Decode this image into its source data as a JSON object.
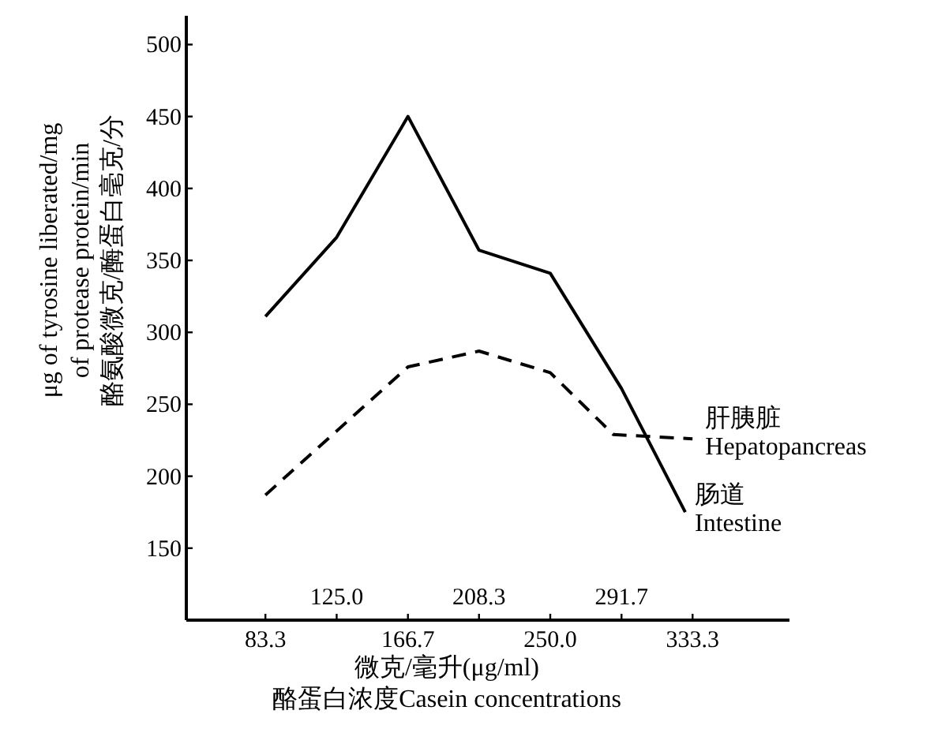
{
  "chart_data": {
    "type": "line",
    "xlabel": "微克/毫升(μg/ml)\n酪蛋白浓度Casein concentrations",
    "ylabel": "μg of tyrosine liberated/mg\nof protease protein/min\n酪氨酸微克/酶蛋白毫克/分",
    "xlim": [
      37,
      390
    ],
    "ylim": [
      100,
      520
    ],
    "xticks": [
      83.3,
      166.7,
      {
        "value": 250,
        "label": "250.0"
      },
      333.3
    ],
    "x2lim": [
      37,
      390
    ],
    "x2ticks": [
      {
        "value": 125,
        "label": "125.0"
      },
      208.3,
      291.7
    ],
    "yticks": [
      150,
      200,
      250,
      300,
      350,
      400,
      450,
      500
    ],
    "grid": false,
    "marker": "none",
    "series": [
      {
        "name": "肠道 Intestine",
        "color": "#000000",
        "line_style": "solid",
        "x": [
          83.3,
          125,
          166.7,
          208.3,
          250,
          291.7,
          329
        ],
        "values": [
          311,
          366,
          450,
          357,
          341,
          261,
          175
        ]
      },
      {
        "name": "肝胰脏 Hepatopancreas",
        "color": "#000000",
        "line_style": "dashed",
        "x": [
          83.3,
          166.7,
          208.3,
          250,
          287,
          333.3
        ],
        "values": [
          187,
          276,
          287,
          272,
          229,
          226
        ]
      }
    ]
  }
}
